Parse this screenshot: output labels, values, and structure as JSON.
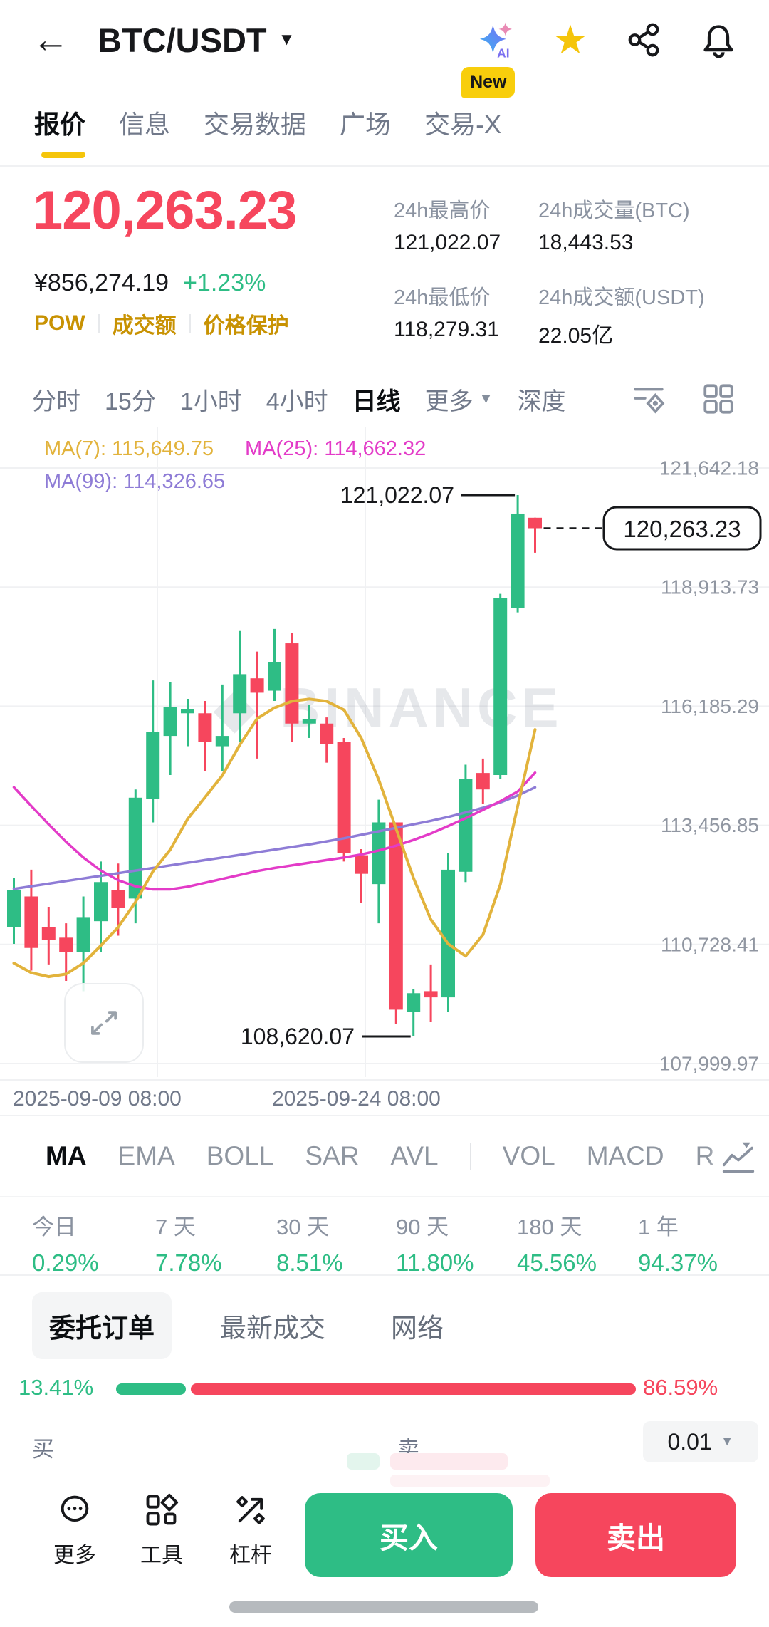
{
  "topbar": {
    "title": "BTC/USDT"
  },
  "nav": {
    "badge": "New",
    "tabs": [
      {
        "label": "报价",
        "active": true
      },
      {
        "label": "信息"
      },
      {
        "label": "交易数据"
      },
      {
        "label": "广场"
      },
      {
        "label": "交易-X",
        "badge": true
      }
    ]
  },
  "quote": {
    "price": "120,263.23",
    "cny": "¥856,274.19",
    "change": "+1.23%",
    "tags": [
      "POW",
      "成交额",
      "价格保护"
    ],
    "stats": [
      {
        "label": "24h最高价",
        "value": "121,022.07"
      },
      {
        "label": "24h成交量(BTC)",
        "value": "18,443.53"
      },
      {
        "label": "24h最低价",
        "value": "118,279.31"
      },
      {
        "label": "24h成交额(USDT)",
        "value": "22.05亿"
      }
    ]
  },
  "tf": {
    "items": [
      {
        "label": "分时"
      },
      {
        "label": "15分"
      },
      {
        "label": "1小时"
      },
      {
        "label": "4小时"
      },
      {
        "label": "日线",
        "active": true
      },
      {
        "label": "更多",
        "caret": true
      },
      {
        "label": "深度"
      }
    ]
  },
  "indicators": {
    "items": [
      "MA",
      "EMA",
      "BOLL",
      "SAR",
      "AVL",
      "VOL",
      "MACD",
      "R"
    ]
  },
  "performance": {
    "items": [
      {
        "label": "今日",
        "value": "0.29%"
      },
      {
        "label": "7 天",
        "value": "7.78%"
      },
      {
        "label": "30 天",
        "value": "8.51%"
      },
      {
        "label": "90 天",
        "value": "11.80%"
      },
      {
        "label": "180 天",
        "value": "45.56%"
      },
      {
        "label": "1 年",
        "value": "94.37%"
      }
    ]
  },
  "orderbook": {
    "tabs": [
      {
        "label": "委托订单",
        "active": true
      },
      {
        "label": "最新成交"
      },
      {
        "label": "网络"
      }
    ],
    "buy_ratio": "13.41%",
    "sell_ratio": "86.59%",
    "buy_pct": 13.41,
    "buy_label": "买",
    "sell_label": "卖",
    "tick": "0.01"
  },
  "bottom": {
    "actions": [
      {
        "label": "更多",
        "icon": "more-icon"
      },
      {
        "label": "工具",
        "icon": "tools-icon"
      },
      {
        "label": "杠杆",
        "icon": "leverage-icon"
      }
    ],
    "buy_label": "买入",
    "sell_label": "卖出"
  },
  "chart_data": {
    "type": "candlestick",
    "title": "BTC/USDT 日线",
    "watermark": "BINANCE",
    "x_axis_labels": [
      "2025-09-09 08:00",
      "2025-09-24 08:00"
    ],
    "x_gridlines": [
      221,
      513
    ],
    "y_axis": {
      "max": 121642.18,
      "min": 107999.97,
      "labels": [
        {
          "label": "121,642.18",
          "value": 121642.18
        },
        {
          "label": "118,913.73",
          "value": 118913.73
        },
        {
          "label": "116,185.29",
          "value": 116185.29
        },
        {
          "label": "113,456.85",
          "value": 113456.85
        },
        {
          "label": "110,728.41",
          "value": 110728.41
        },
        {
          "label": "107,999.97",
          "value": 107999.97
        }
      ]
    },
    "colors": {
      "up": "#2EBD85",
      "down": "#F6465D",
      "accent": "#F5C50B"
    },
    "candles": [
      [
        111119,
        112251,
        110742,
        111968
      ],
      [
        111827,
        112440,
        110129,
        110648
      ],
      [
        111119,
        111591,
        110270,
        110836
      ],
      [
        110883,
        111213,
        109893,
        110553
      ],
      [
        110553,
        111827,
        109657,
        111355
      ],
      [
        111261,
        112629,
        110553,
        112157
      ],
      [
        111968,
        112582,
        110930,
        111572
      ],
      [
        111780,
        114279,
        111213,
        114090
      ],
      [
        114062,
        116778,
        113524,
        115599
      ],
      [
        115505,
        116731,
        114609,
        116165
      ],
      [
        116024,
        116354,
        115269,
        116118
      ],
      [
        116024,
        116307,
        114703,
        115364
      ],
      [
        115269,
        116684,
        114703,
        115505
      ],
      [
        116024,
        117910,
        115364,
        116920
      ],
      [
        116825,
        117438,
        114986,
        116495
      ],
      [
        116542,
        117957,
        116307,
        117202
      ],
      [
        117627,
        117863,
        115364,
        115788
      ],
      [
        115788,
        116212,
        115458,
        115882
      ],
      [
        115788,
        115929,
        114892,
        115316
      ],
      [
        115364,
        115458,
        112629,
        112818
      ],
      [
        112771,
        112912,
        111686,
        112346
      ],
      [
        112110,
        114043,
        111213,
        113524
      ],
      [
        113524,
        113524,
        108903,
        109233
      ],
      [
        109187,
        109705,
        108620.07,
        109611
      ],
      [
        109658,
        110270,
        108950,
        109516
      ],
      [
        109516,
        112817,
        109187,
        112440
      ],
      [
        112393,
        114845,
        112157,
        114515
      ],
      [
        114656,
        114986,
        113949,
        114279
      ],
      [
        114609,
        118759,
        114515,
        118665
      ],
      [
        118429,
        121022.07,
        118335,
        120598
      ],
      [
        120503,
        120503,
        119702,
        120263.23
      ]
    ],
    "ma7": {
      "label": "MA(7): 115,649.75",
      "color": "#E2B33C",
      "series": [
        110300,
        110080,
        109990,
        110050,
        110300,
        110700,
        111120,
        111700,
        112400,
        112900,
        113600,
        114100,
        114600,
        115300,
        115900,
        116150,
        116300,
        116350,
        116300,
        116100,
        115450,
        114500,
        113380,
        112250,
        111300,
        110740,
        110460,
        110950,
        112100,
        113900,
        115650
      ]
    },
    "ma25": {
      "label": "MA(25): 114,662.32",
      "color": "#E33BC8",
      "series": [
        114330,
        113900,
        113480,
        113080,
        112720,
        112420,
        112200,
        112060,
        111990,
        111990,
        112050,
        112140,
        112230,
        112320,
        112410,
        112480,
        112540,
        112600,
        112660,
        112720,
        112790,
        112880,
        112990,
        113120,
        113270,
        113440,
        113620,
        113810,
        114010,
        114230,
        114662
      ]
    },
    "ma99": {
      "label": "MA(99): 114,326.65",
      "color": "#8E7CD6",
      "series": [
        112000,
        112060,
        112120,
        112180,
        112240,
        112300,
        112360,
        112420,
        112480,
        112540,
        112600,
        112660,
        112720,
        112780,
        112840,
        112900,
        112960,
        113020,
        113090,
        113160,
        113240,
        113320,
        113400,
        113480,
        113560,
        113650,
        113750,
        113860,
        113980,
        114140,
        114327
      ]
    },
    "annotations": {
      "high": {
        "label": "121,022.07",
        "price": 121022.07,
        "index": 29
      },
      "low": {
        "label": "108,620.07",
        "price": 108620.07,
        "index": 23
      }
    },
    "current": {
      "price": 120263.23,
      "label": "120,263.23"
    }
  }
}
